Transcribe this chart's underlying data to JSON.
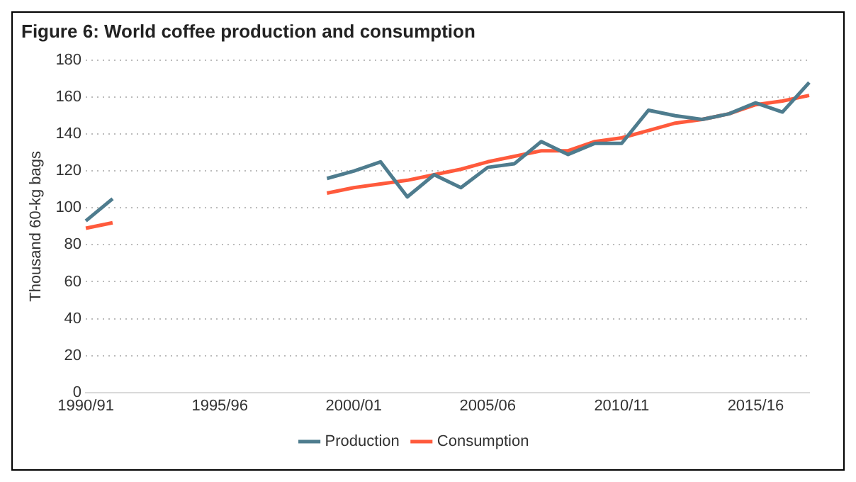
{
  "chart_data": {
    "type": "line",
    "title": "Figure 6: World coffee production and consumption",
    "ylabel": "Thousand 60-kg bags",
    "categories": [
      "1990/91",
      null,
      null,
      null,
      null,
      "1995/96",
      null,
      null,
      null,
      null,
      "2000/01",
      null,
      null,
      null,
      null,
      "2005/06",
      null,
      null,
      null,
      null,
      "2010/11",
      null,
      null,
      null,
      null,
      "2015/16",
      null,
      null
    ],
    "series": [
      {
        "name": "Production",
        "color": "#4e7c8e",
        "values": [
          93,
          105,
          null,
          null,
          null,
          null,
          null,
          null,
          null,
          116,
          120,
          125,
          106,
          118,
          111,
          122,
          124,
          136,
          129,
          135,
          135,
          153,
          150,
          148,
          151,
          157,
          152,
          168
        ]
      },
      {
        "name": "Consumption",
        "color": "#ff5a3c",
        "values": [
          89,
          92,
          null,
          null,
          null,
          null,
          null,
          null,
          null,
          108,
          111,
          113,
          115,
          118,
          121,
          125,
          128,
          131,
          131,
          136,
          138,
          142,
          146,
          148,
          151,
          156,
          158,
          161
        ]
      }
    ],
    "ylim": [
      0,
      180
    ],
    "yticks": [
      0,
      20,
      40,
      60,
      80,
      100,
      120,
      140,
      160,
      180
    ],
    "grid": "y",
    "legend": "bottom"
  }
}
